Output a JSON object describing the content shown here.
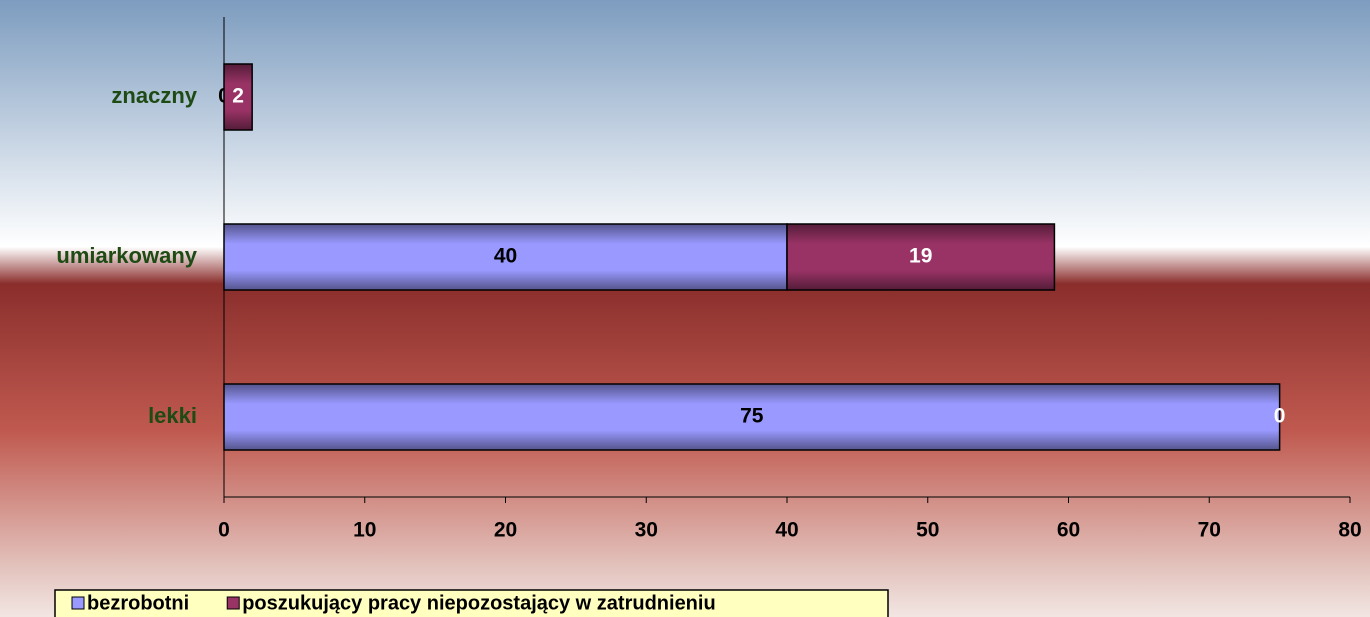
{
  "chart_data": {
    "type": "stacked-barh",
    "categories": [
      "znaczny",
      "umiarkowany",
      "lekki"
    ],
    "series": [
      {
        "name": "bezrobotni",
        "color": "#9999ff",
        "values": [
          0,
          40,
          75
        ]
      },
      {
        "name": "poszukujący pracy niepozostający w zatrudnieniu",
        "color": "#993366",
        "values": [
          2,
          19,
          0
        ]
      }
    ],
    "xlim": [
      0,
      80
    ],
    "xticks": [
      0,
      10,
      20,
      30,
      40,
      50,
      60,
      70,
      80
    ],
    "legend": "bottom-left"
  }
}
